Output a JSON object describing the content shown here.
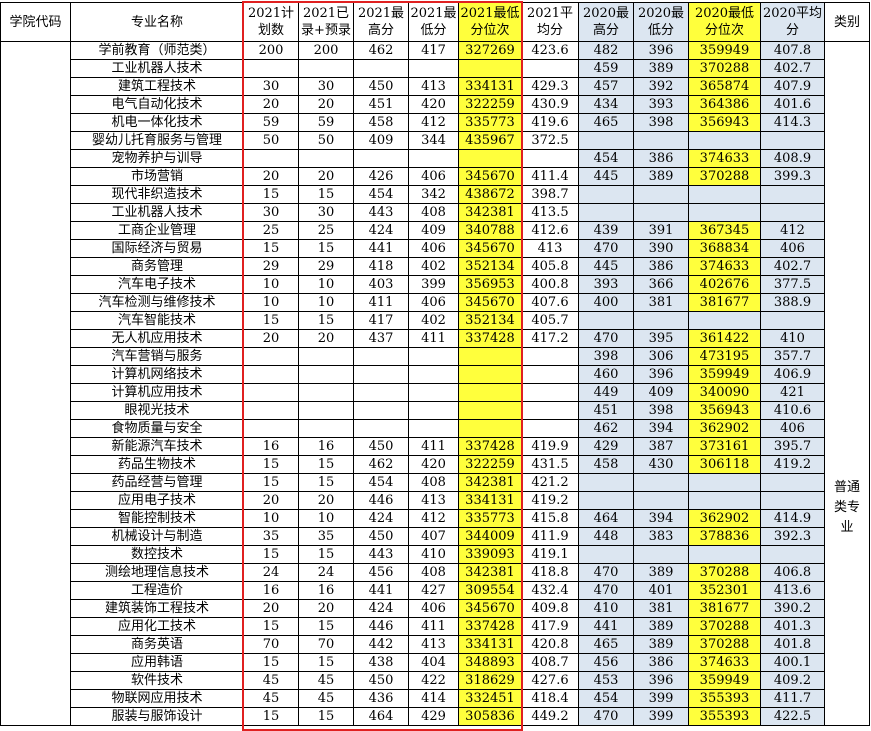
{
  "table": {
    "headers": [
      "学院代码",
      "专业名称",
      "2021计划数",
      "2021已录+预录",
      "2021最高分",
      "2021最低分",
      "2021最低分位次",
      "2021平均分",
      "2020最高分",
      "2020最低分",
      "2020最低分位次",
      "2020平均分",
      "类别"
    ],
    "category": "普通类专业",
    "rows": [
      {
        "name": "学前教育（师范类）",
        "values": [
          200,
          200,
          462,
          417,
          327269,
          423.6,
          482,
          396,
          359949,
          407.8
        ]
      },
      {
        "name": "工业机器人技术",
        "values": [
          null,
          null,
          null,
          null,
          null,
          null,
          459,
          389,
          370288,
          402.7
        ]
      },
      {
        "name": "建筑工程技术",
        "values": [
          30,
          30,
          450,
          413,
          334131,
          429.3,
          457,
          392,
          365874,
          407.9
        ]
      },
      {
        "name": "电气自动化技术",
        "values": [
          20,
          20,
          451,
          420,
          322259,
          430.9,
          434,
          393,
          364386,
          401.6
        ]
      },
      {
        "name": "机电一体化技术",
        "values": [
          59,
          59,
          458,
          412,
          335773,
          419.6,
          465,
          398,
          356943,
          414.3
        ]
      },
      {
        "name": "婴幼儿托育服务与管理",
        "values": [
          50,
          50,
          409,
          344,
          435967,
          372.5,
          null,
          null,
          null,
          null
        ]
      },
      {
        "name": "宠物养护与训导",
        "values": [
          null,
          null,
          null,
          null,
          null,
          null,
          454,
          386,
          374633,
          408.9
        ]
      },
      {
        "name": "市场营销",
        "values": [
          20,
          20,
          426,
          406,
          345670,
          411.4,
          445,
          389,
          370288,
          399.3
        ]
      },
      {
        "name": "现代非织造技术",
        "values": [
          15,
          15,
          454,
          342,
          438672,
          398.7,
          null,
          null,
          null,
          null
        ]
      },
      {
        "name": "工业机器人技术",
        "values": [
          30,
          30,
          443,
          408,
          342381,
          413.5,
          null,
          null,
          null,
          null
        ]
      },
      {
        "name": "工商企业管理",
        "values": [
          25,
          25,
          424,
          409,
          340788,
          412.6,
          439,
          391,
          367345,
          412
        ]
      },
      {
        "name": "国际经济与贸易",
        "values": [
          15,
          15,
          441,
          406,
          345670,
          413,
          470,
          390,
          368834,
          406
        ]
      },
      {
        "name": "商务管理",
        "values": [
          29,
          29,
          418,
          402,
          352134,
          405.8,
          445,
          386,
          374633,
          402.7
        ]
      },
      {
        "name": "汽车电子技术",
        "values": [
          10,
          10,
          403,
          399,
          356953,
          400.8,
          393,
          366,
          402676,
          377.5
        ]
      },
      {
        "name": "汽车检测与维修技术",
        "values": [
          10,
          10,
          411,
          406,
          345670,
          407.6,
          400,
          381,
          381677,
          388.9
        ]
      },
      {
        "name": "汽车智能技术",
        "values": [
          15,
          15,
          417,
          402,
          352134,
          405.7,
          null,
          null,
          null,
          null
        ]
      },
      {
        "name": "无人机应用技术",
        "values": [
          20,
          20,
          437,
          411,
          337428,
          417.2,
          470,
          395,
          361422,
          410
        ]
      },
      {
        "name": "汽车营销与服务",
        "values": [
          null,
          null,
          null,
          null,
          null,
          null,
          398,
          306,
          473195,
          357.7
        ]
      },
      {
        "name": "计算机网络技术",
        "values": [
          null,
          null,
          null,
          null,
          null,
          null,
          460,
          396,
          359949,
          406.9
        ]
      },
      {
        "name": "计算机应用技术",
        "values": [
          null,
          null,
          null,
          null,
          null,
          null,
          449,
          409,
          340090,
          421
        ]
      },
      {
        "name": "眼视光技术",
        "values": [
          null,
          null,
          null,
          null,
          null,
          null,
          451,
          398,
          356943,
          410.6
        ]
      },
      {
        "name": "食物质量与安全",
        "values": [
          null,
          null,
          null,
          null,
          null,
          null,
          462,
          394,
          362902,
          406
        ]
      },
      {
        "name": "新能源汽车技术",
        "values": [
          16,
          16,
          450,
          411,
          337428,
          419.9,
          429,
          387,
          373161,
          395.7
        ]
      },
      {
        "name": "药品生物技术",
        "values": [
          15,
          15,
          462,
          420,
          322259,
          431.5,
          458,
          430,
          306118,
          419.2
        ]
      },
      {
        "name": "药品经营与管理",
        "values": [
          15,
          15,
          454,
          408,
          342381,
          421.2,
          null,
          null,
          null,
          null
        ]
      },
      {
        "name": "应用电子技术",
        "values": [
          20,
          20,
          446,
          413,
          334131,
          419.2,
          null,
          null,
          null,
          null
        ]
      },
      {
        "name": "智能控制技术",
        "values": [
          10,
          10,
          424,
          412,
          335773,
          415.8,
          464,
          394,
          362902,
          414.9
        ]
      },
      {
        "name": "机械设计与制造",
        "values": [
          35,
          35,
          450,
          407,
          344009,
          411.9,
          448,
          383,
          378836,
          392.3
        ]
      },
      {
        "name": "数控技术",
        "values": [
          15,
          15,
          443,
          410,
          339093,
          419.1,
          null,
          null,
          null,
          null
        ]
      },
      {
        "name": "测绘地理信息技术",
        "values": [
          24,
          24,
          456,
          408,
          342381,
          418.8,
          470,
          389,
          370288,
          406.8
        ]
      },
      {
        "name": "工程造价",
        "values": [
          16,
          16,
          441,
          427,
          309554,
          432.4,
          470,
          401,
          352301,
          413.6
        ]
      },
      {
        "name": "建筑装饰工程技术",
        "values": [
          20,
          20,
          424,
          406,
          345670,
          409.8,
          410,
          381,
          381677,
          390.2
        ]
      },
      {
        "name": "应用化工技术",
        "values": [
          15,
          15,
          446,
          411,
          337428,
          417.9,
          441,
          389,
          370288,
          401.3
        ]
      },
      {
        "name": "商务英语",
        "values": [
          70,
          70,
          442,
          413,
          334131,
          420.8,
          465,
          389,
          370288,
          401.8
        ]
      },
      {
        "name": "应用韩语",
        "values": [
          15,
          15,
          438,
          404,
          348893,
          408.7,
          456,
          386,
          374633,
          400.1
        ]
      },
      {
        "name": "软件技术",
        "values": [
          45,
          45,
          450,
          422,
          318629,
          427.6,
          453,
          396,
          359949,
          409.2
        ]
      },
      {
        "name": "物联网应用技术",
        "values": [
          45,
          45,
          436,
          414,
          332451,
          418.4,
          454,
          399,
          355393,
          411.7
        ]
      },
      {
        "name": "服装与服饰设计",
        "values": [
          15,
          15,
          464,
          429,
          305836,
          449.2,
          470,
          399,
          355393,
          422.5
        ]
      }
    ]
  }
}
